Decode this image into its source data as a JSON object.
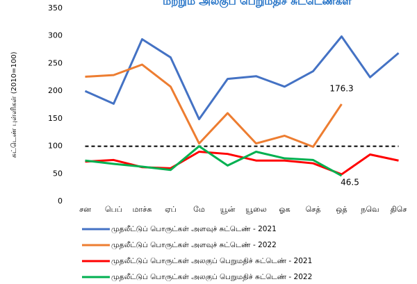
{
  "chart_data": {
    "type": "line",
    "title": "மற்றும் அலகுப் பெறுமதிச் சுட்டெண்கள்",
    "y_label": "சுட்டெண் புள்ளிகள் (2010=100)",
    "categories": [
      "சன",
      "பெப்",
      "மாச்சு",
      "ஏப்",
      "மே",
      "யூன்",
      "யூலை",
      "ஓக",
      "செத்",
      "ஒத்",
      "நவெ",
      "திசெ"
    ],
    "series": [
      {
        "name": "முதலீட்டுப் பொருட்கள் அளவுச் சுட்டெண் - 2021",
        "color": "#4472c4",
        "values": [
          200,
          177,
          294,
          261,
          149,
          222,
          227,
          208,
          236,
          299,
          225,
          269
        ]
      },
      {
        "name": "முதலீட்டுப் பொருட்கள் அளவுச் சுட்டெண் - 2022",
        "color": "#ed7d31",
        "values": [
          226,
          229,
          248,
          208,
          105,
          160,
          105,
          119,
          99,
          176.3,
          null,
          null
        ]
      },
      {
        "name": "முதலீட்டுப் பொருட்கள் அலகுப் பெறுமதிச் சுட்டெண் - 2021",
        "color": "#ff0000",
        "values": [
          72,
          75,
          62,
          60,
          90,
          86,
          74,
          74,
          69,
          49,
          85,
          74
        ]
      },
      {
        "name": "முதலீட்டுப் பொருட்கள் அலகுப் பெறுமதிச் சுட்டெண் - 2022",
        "color": "#00b050",
        "values": [
          74,
          68,
          63,
          57,
          100,
          65,
          90,
          78,
          75,
          46.5,
          null,
          null
        ]
      }
    ],
    "data_labels": [
      {
        "series": 1,
        "index": 9
      },
      {
        "series": 3,
        "index": 9
      }
    ],
    "reference_line": 100,
    "ylim": [
      0,
      350
    ],
    "yticks": [
      0,
      50,
      100,
      150,
      200,
      250,
      300,
      350
    ],
    "grid": false
  }
}
